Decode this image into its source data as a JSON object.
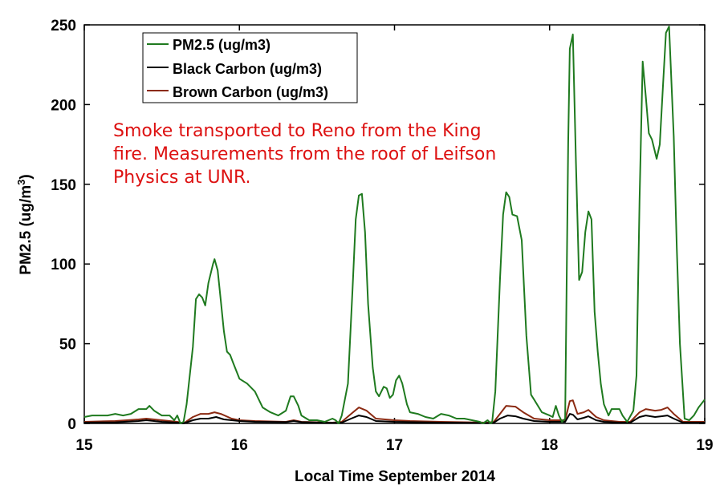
{
  "chart_data": {
    "type": "line",
    "title": "",
    "xlabel": "Local Time September 2014",
    "ylabel": "PM2.5 (ug/m",
    "ylabel_superscript": "3",
    "ylabel_suffix": ")",
    "xlim": [
      15,
      19
    ],
    "ylim": [
      0,
      250
    ],
    "xticks": [
      15,
      16,
      17,
      18,
      19
    ],
    "yticks": [
      0,
      50,
      100,
      150,
      200,
      250
    ],
    "grid": false,
    "legend_position": "top-left",
    "annotation": {
      "lines": [
        "Smoke transported to Reno from the King",
        "fire.  Measurements from the roof of Leifson",
        "Physics at UNR."
      ],
      "color": "#dd1111"
    },
    "series": [
      {
        "name": "PM2.5 (ug/m3)",
        "color": "#1f7a1f",
        "points": [
          [
            15.0,
            4
          ],
          [
            15.05,
            5
          ],
          [
            15.1,
            5
          ],
          [
            15.15,
            5
          ],
          [
            15.2,
            6
          ],
          [
            15.25,
            5
          ],
          [
            15.3,
            6
          ],
          [
            15.35,
            9
          ],
          [
            15.4,
            9
          ],
          [
            15.42,
            11
          ],
          [
            15.45,
            8
          ],
          [
            15.5,
            5
          ],
          [
            15.55,
            5
          ],
          [
            15.58,
            2
          ],
          [
            15.6,
            5
          ],
          [
            15.62,
            0
          ],
          [
            15.64,
            1
          ],
          [
            15.66,
            12
          ],
          [
            15.7,
            48
          ],
          [
            15.72,
            78
          ],
          [
            15.74,
            81
          ],
          [
            15.76,
            79
          ],
          [
            15.78,
            74
          ],
          [
            15.8,
            88
          ],
          [
            15.83,
            100
          ],
          [
            15.84,
            103
          ],
          [
            15.86,
            96
          ],
          [
            15.88,
            77
          ],
          [
            15.9,
            58
          ],
          [
            15.92,
            45
          ],
          [
            15.94,
            43
          ],
          [
            15.96,
            38
          ],
          [
            15.98,
            33
          ],
          [
            16.0,
            28
          ],
          [
            16.05,
            25
          ],
          [
            16.1,
            20
          ],
          [
            16.15,
            10
          ],
          [
            16.2,
            7
          ],
          [
            16.25,
            5
          ],
          [
            16.3,
            8
          ],
          [
            16.33,
            17
          ],
          [
            16.35,
            17
          ],
          [
            16.38,
            11
          ],
          [
            16.4,
            5
          ],
          [
            16.45,
            2
          ],
          [
            16.5,
            2
          ],
          [
            16.55,
            1
          ],
          [
            16.6,
            3
          ],
          [
            16.62,
            2
          ],
          [
            16.64,
            0
          ],
          [
            16.66,
            5
          ],
          [
            16.7,
            25
          ],
          [
            16.73,
            85
          ],
          [
            16.75,
            128
          ],
          [
            16.77,
            143
          ],
          [
            16.79,
            144
          ],
          [
            16.81,
            120
          ],
          [
            16.83,
            75
          ],
          [
            16.86,
            35
          ],
          [
            16.88,
            20
          ],
          [
            16.9,
            17
          ],
          [
            16.93,
            23
          ],
          [
            16.95,
            22
          ],
          [
            16.97,
            16
          ],
          [
            16.99,
            18
          ],
          [
            17.01,
            27
          ],
          [
            17.03,
            30
          ],
          [
            17.05,
            25
          ],
          [
            17.08,
            12
          ],
          [
            17.1,
            7
          ],
          [
            17.15,
            6
          ],
          [
            17.2,
            4
          ],
          [
            17.25,
            3
          ],
          [
            17.3,
            6
          ],
          [
            17.35,
            5
          ],
          [
            17.4,
            3
          ],
          [
            17.45,
            3
          ],
          [
            17.5,
            2
          ],
          [
            17.55,
            1
          ],
          [
            17.57,
            0
          ],
          [
            17.6,
            2
          ],
          [
            17.62,
            0
          ],
          [
            17.63,
            1
          ],
          [
            17.65,
            20
          ],
          [
            17.68,
            90
          ],
          [
            17.7,
            131
          ],
          [
            17.72,
            145
          ],
          [
            17.74,
            142
          ],
          [
            17.76,
            131
          ],
          [
            17.79,
            130
          ],
          [
            17.82,
            115
          ],
          [
            17.85,
            55
          ],
          [
            17.88,
            18
          ],
          [
            17.9,
            15
          ],
          [
            17.95,
            7
          ],
          [
            18.0,
            5
          ],
          [
            18.02,
            4
          ],
          [
            18.04,
            11
          ],
          [
            18.06,
            5
          ],
          [
            18.08,
            1
          ],
          [
            18.1,
            3
          ],
          [
            18.12,
            176
          ],
          [
            18.13,
            235
          ],
          [
            18.15,
            244
          ],
          [
            18.17,
            163
          ],
          [
            18.19,
            90
          ],
          [
            18.21,
            95
          ],
          [
            18.23,
            120
          ],
          [
            18.25,
            133
          ],
          [
            18.27,
            128
          ],
          [
            18.29,
            70
          ],
          [
            18.31,
            45
          ],
          [
            18.33,
            25
          ],
          [
            18.35,
            12
          ],
          [
            18.38,
            5
          ],
          [
            18.4,
            9
          ],
          [
            18.45,
            9
          ],
          [
            18.47,
            5
          ],
          [
            18.5,
            1
          ],
          [
            18.54,
            8
          ],
          [
            18.56,
            30
          ],
          [
            18.58,
            140
          ],
          [
            18.6,
            227
          ],
          [
            18.62,
            205
          ],
          [
            18.64,
            182
          ],
          [
            18.66,
            178
          ],
          [
            18.69,
            166
          ],
          [
            18.71,
            175
          ],
          [
            18.73,
            210
          ],
          [
            18.75,
            245
          ],
          [
            18.77,
            249
          ],
          [
            18.8,
            180
          ],
          [
            18.82,
            110
          ],
          [
            18.84,
            50
          ],
          [
            18.87,
            3
          ],
          [
            18.9,
            2
          ],
          [
            18.93,
            5
          ],
          [
            18.96,
            10
          ],
          [
            19.0,
            15
          ]
        ]
      },
      {
        "name": "Black Carbon (ug/m3)",
        "color": "#000000",
        "points": [
          [
            15.0,
            0.5
          ],
          [
            15.2,
            0.7
          ],
          [
            15.35,
            1.5
          ],
          [
            15.4,
            2
          ],
          [
            15.5,
            1
          ],
          [
            15.6,
            0.5
          ],
          [
            15.64,
            0
          ],
          [
            15.7,
            2
          ],
          [
            15.75,
            3
          ],
          [
            15.8,
            3
          ],
          [
            15.85,
            4
          ],
          [
            15.9,
            2.5
          ],
          [
            16.0,
            1.5
          ],
          [
            16.1,
            1
          ],
          [
            16.3,
            0.8
          ],
          [
            16.35,
            1.5
          ],
          [
            16.4,
            0.8
          ],
          [
            16.6,
            0.3
          ],
          [
            16.66,
            0.5
          ],
          [
            16.72,
            3
          ],
          [
            16.77,
            5
          ],
          [
            16.82,
            4
          ],
          [
            16.88,
            1.5
          ],
          [
            17.0,
            1
          ],
          [
            17.1,
            0.8
          ],
          [
            17.3,
            0.5
          ],
          [
            17.6,
            0.2
          ],
          [
            17.64,
            0.5
          ],
          [
            17.68,
            3
          ],
          [
            17.73,
            5
          ],
          [
            17.78,
            4.5
          ],
          [
            17.83,
            3
          ],
          [
            17.9,
            1.5
          ],
          [
            18.0,
            1
          ],
          [
            18.1,
            1
          ],
          [
            18.13,
            6
          ],
          [
            18.15,
            5.5
          ],
          [
            18.18,
            2.5
          ],
          [
            18.22,
            3.5
          ],
          [
            18.25,
            4.5
          ],
          [
            18.3,
            2
          ],
          [
            18.35,
            1
          ],
          [
            18.45,
            0.5
          ],
          [
            18.52,
            0.5
          ],
          [
            18.58,
            4
          ],
          [
            18.62,
            5
          ],
          [
            18.68,
            4
          ],
          [
            18.72,
            4.5
          ],
          [
            18.76,
            5
          ],
          [
            18.8,
            3
          ],
          [
            18.86,
            0.5
          ],
          [
            19.0,
            0.5
          ]
        ]
      },
      {
        "name": "Brown Carbon (ug/m3)",
        "color": "#8b2a12",
        "points": [
          [
            15.0,
            1
          ],
          [
            15.2,
            1.5
          ],
          [
            15.35,
            2.5
          ],
          [
            15.4,
            3
          ],
          [
            15.5,
            2
          ],
          [
            15.6,
            1
          ],
          [
            15.64,
            0
          ],
          [
            15.7,
            4
          ],
          [
            15.75,
            6
          ],
          [
            15.8,
            6
          ],
          [
            15.84,
            7
          ],
          [
            15.88,
            6
          ],
          [
            15.95,
            3
          ],
          [
            16.0,
            2
          ],
          [
            16.1,
            1.5
          ],
          [
            16.3,
            1
          ],
          [
            16.35,
            2
          ],
          [
            16.4,
            1
          ],
          [
            16.6,
            0.5
          ],
          [
            16.66,
            1
          ],
          [
            16.72,
            6
          ],
          [
            16.77,
            10
          ],
          [
            16.82,
            8
          ],
          [
            16.88,
            3
          ],
          [
            17.0,
            2
          ],
          [
            17.1,
            1.5
          ],
          [
            17.3,
            1
          ],
          [
            17.6,
            0.5
          ],
          [
            17.64,
            1
          ],
          [
            17.68,
            6
          ],
          [
            17.72,
            11
          ],
          [
            17.78,
            10.5
          ],
          [
            17.83,
            7
          ],
          [
            17.9,
            3
          ],
          [
            18.0,
            2
          ],
          [
            18.1,
            2
          ],
          [
            18.13,
            14
          ],
          [
            18.15,
            14.5
          ],
          [
            18.18,
            6
          ],
          [
            18.22,
            7
          ],
          [
            18.25,
            8.5
          ],
          [
            18.3,
            4
          ],
          [
            18.35,
            2
          ],
          [
            18.45,
            1
          ],
          [
            18.52,
            1
          ],
          [
            18.58,
            7
          ],
          [
            18.62,
            9
          ],
          [
            18.68,
            8
          ],
          [
            18.72,
            8.5
          ],
          [
            18.76,
            10
          ],
          [
            18.8,
            6
          ],
          [
            18.86,
            1
          ],
          [
            19.0,
            1
          ]
        ]
      }
    ]
  }
}
